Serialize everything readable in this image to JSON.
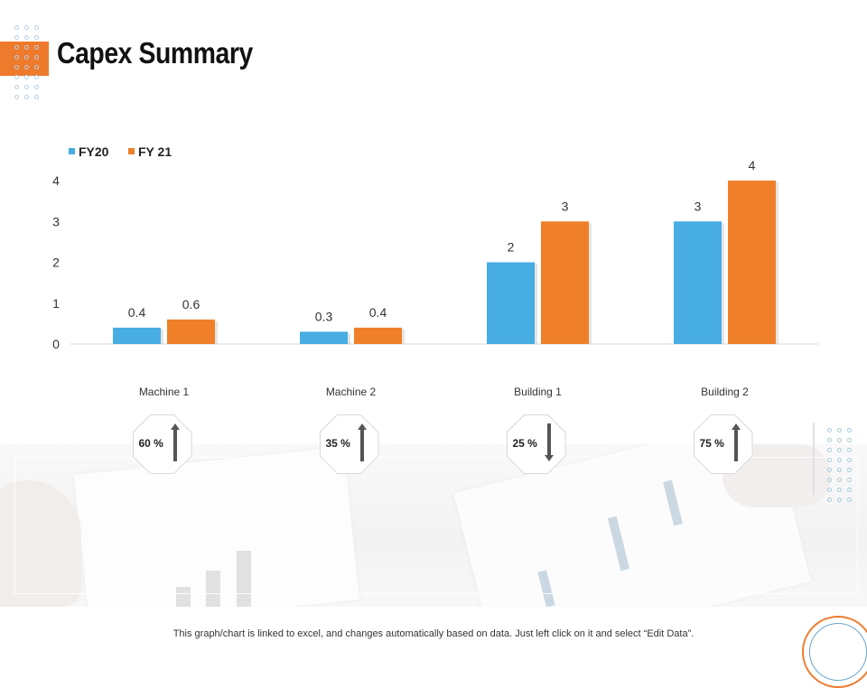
{
  "page": {
    "title": "Capex Summary"
  },
  "chart_data": {
    "type": "bar",
    "title": "",
    "categories": [
      "Machine 1",
      "Machine 2",
      "Building 1",
      "Building 2"
    ],
    "series": [
      {
        "name": "FY20",
        "values": [
          0.4,
          0.3,
          2,
          3
        ],
        "labels": [
          "0.4",
          "0.3",
          "2",
          "3"
        ],
        "color": "#47ade2"
      },
      {
        "name": "FY 21",
        "values": [
          0.6,
          0.4,
          3,
          4
        ],
        "labels": [
          "0.6",
          "0.4",
          "3",
          "4"
        ],
        "color": "#ef8029"
      }
    ],
    "yticks": [
      "0",
      "1",
      "2",
      "3",
      "4"
    ],
    "ylim": [
      0,
      4
    ],
    "legend": "top-left",
    "xlabel": "",
    "ylabel": ""
  },
  "badges": [
    {
      "text": "60 %",
      "direction": "up"
    },
    {
      "text": "35 %",
      "direction": "up"
    },
    {
      "text": "25 %",
      "direction": "down"
    },
    {
      "text": "75 %",
      "direction": "up"
    }
  ],
  "colors": {
    "accent": "#ee7a2c",
    "arrow": "#555555"
  },
  "footer": {
    "note": "This graph/chart is linked to excel, and changes automatically based on data. Just left click on it and select “Edit Data”."
  }
}
